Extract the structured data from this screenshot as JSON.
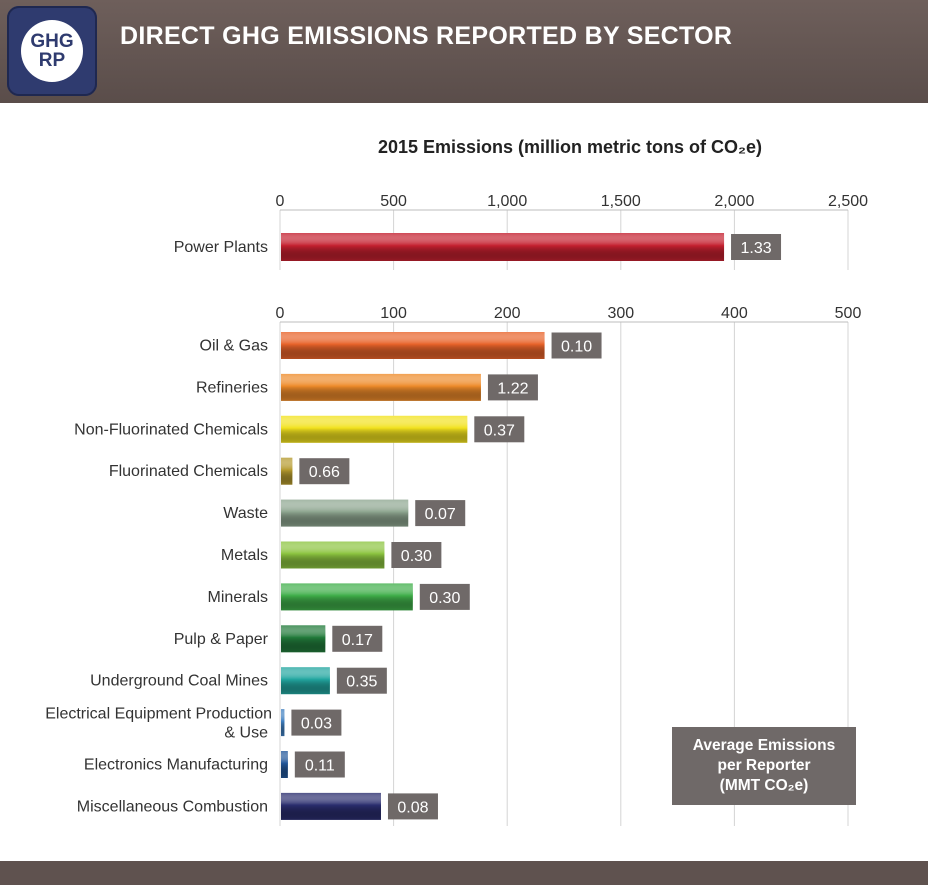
{
  "header": {
    "title": "DIRECT GHG EMISSIONS REPORTED BY SECTOR",
    "logo_line1": "GHG",
    "logo_line2": "RP"
  },
  "legend": {
    "line1": "Average Emissions",
    "line2": "per Reporter",
    "line3": "(MMT CO₂e)"
  },
  "colors": {
    "header_bg": "#5f524f",
    "logo_bg": "#2f3b6f",
    "label_box": "#6f6968"
  },
  "chart_data": [
    {
      "type": "bar",
      "orientation": "horizontal",
      "title": "2015 Emissions (million metric tons of CO₂e)",
      "xlim": [
        0,
        2500
      ],
      "x_ticks": [
        "0",
        "500",
        "1,000",
        "1,500",
        "2,000",
        "2,500"
      ],
      "grid": true,
      "categories": [
        "Power Plants"
      ],
      "values": [
        1950
      ],
      "data_labels": [
        "1.33"
      ],
      "colors": [
        "#c4202f"
      ]
    },
    {
      "type": "bar",
      "orientation": "horizontal",
      "xlim": [
        0,
        500
      ],
      "x_ticks": [
        "0",
        "100",
        "200",
        "300",
        "400",
        "500"
      ],
      "grid": true,
      "categories": [
        "Oil & Gas",
        "Refineries",
        "Non-Fluorinated Chemicals",
        "Fluorinated Chemicals",
        "Waste",
        "Metals",
        "Minerals",
        "Pulp & Paper",
        "Underground Coal Mines",
        "Electrical Equipment Production & Use",
        "Electronics Manufacturing",
        "Miscellaneous Combustion"
      ],
      "values": [
        232,
        176,
        164,
        10,
        112,
        91,
        116,
        39,
        43,
        3,
        6,
        88
      ],
      "data_labels": [
        "0.10",
        "1.22",
        "0.37",
        "0.66",
        "0.07",
        "0.30",
        "0.30",
        "0.17",
        "0.35",
        "0.03",
        "0.11",
        "0.08"
      ],
      "colors": [
        "#e8632a",
        "#ee8b2a",
        "#f2e21e",
        "#b59a2e",
        "#8ea690",
        "#8cc43f",
        "#3fae49",
        "#217a3a",
        "#22a6a0",
        "#3f7fc0",
        "#22579a",
        "#2a2d6e"
      ]
    }
  ]
}
